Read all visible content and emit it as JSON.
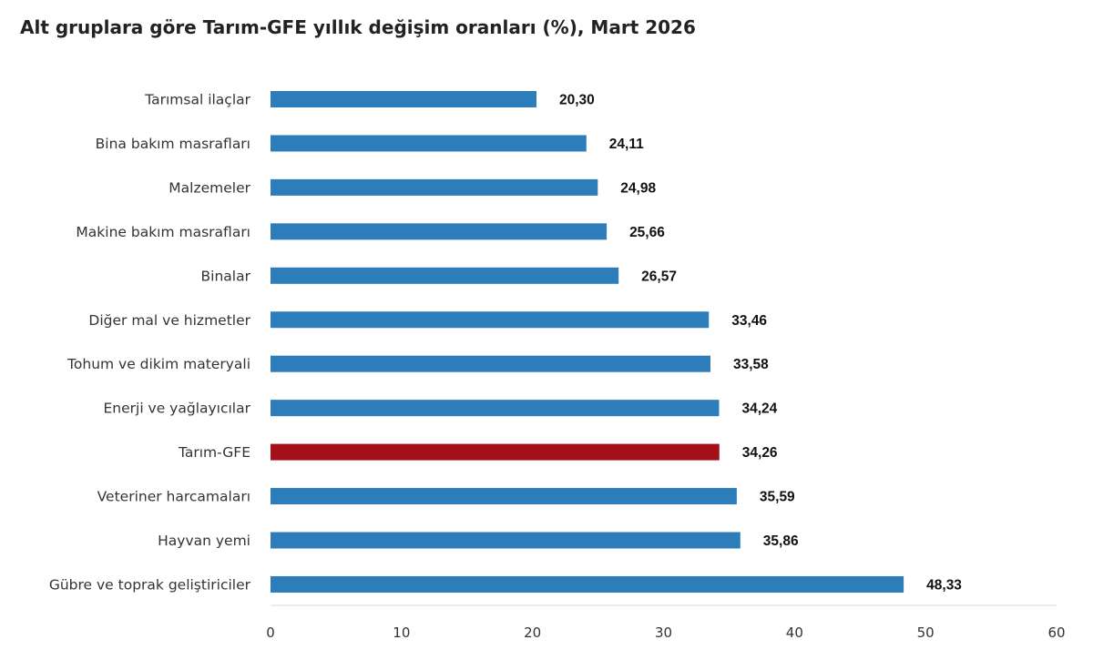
{
  "chart_data": {
    "type": "bar",
    "orientation": "horizontal",
    "title": "Alt gruplara göre Tarım-GFE yıllık değişim oranları (%), Mart 2026",
    "categories": [
      "Tarımsal ilaçlar",
      "Bina bakım masrafları",
      "Malzemeler",
      "Makine bakım masrafları",
      "Binalar",
      "Diğer mal ve hizmetler",
      "Tohum ve dikim materyali",
      "Enerji  ve yağlayıcılar",
      "Tarım-GFE",
      "Veteriner harcamaları",
      "Hayvan yemi",
      "Gübre ve toprak geliştiriciler"
    ],
    "values": [
      20.3,
      24.11,
      24.98,
      25.66,
      26.57,
      33.46,
      33.58,
      34.24,
      34.26,
      35.59,
      35.86,
      48.33
    ],
    "value_labels": [
      "20,30",
      "24,11",
      "24,98",
      "25,66",
      "26,57",
      "33,46",
      "33,58",
      "34,24",
      "34,26",
      "35,59",
      "35,86",
      "48,33"
    ],
    "xlim": [
      0,
      60
    ],
    "xticks": [
      "0",
      "10",
      "20",
      "30",
      "40",
      "50",
      "60"
    ],
    "xlabel": "",
    "ylabel": "",
    "grid": false,
    "legend": "none",
    "colors": {
      "bar": "#2e7dbb",
      "highlight": "#a5111a",
      "axis": "#d9d9d9"
    },
    "highlight_category": "Tarım-GFE"
  }
}
